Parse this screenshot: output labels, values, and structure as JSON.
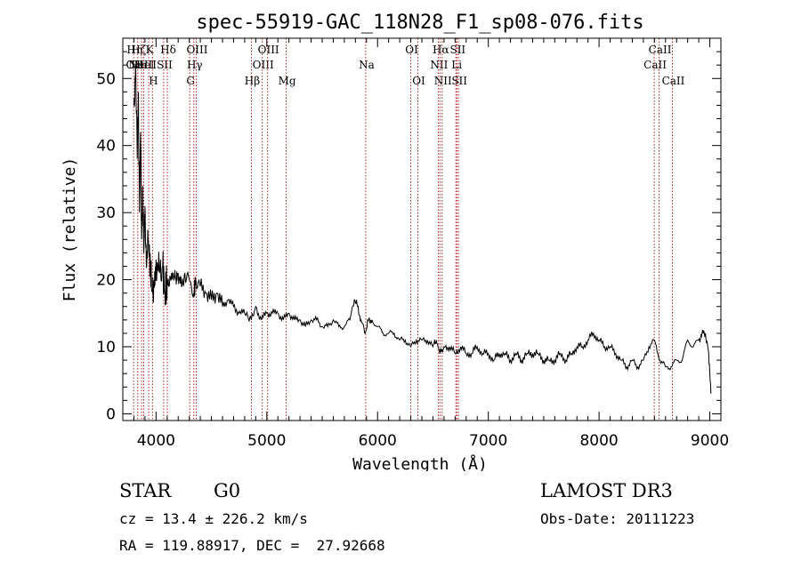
{
  "chart_data": {
    "type": "line",
    "title": "spec-55919-GAC_118N28_F1_sp08-076.fits",
    "xlabel": "Wavelength (Å)",
    "ylabel": "Flux (relative)",
    "xlim": [
      3700,
      9100
    ],
    "ylim": [
      -1,
      56
    ],
    "x_ticks": [
      4000,
      5000,
      6000,
      7000,
      8000,
      9000
    ],
    "y_ticks": [
      0,
      10,
      20,
      30,
      40,
      50
    ],
    "series": [
      {
        "name": "flux",
        "x": [
          3800,
          3815,
          3830,
          3840,
          3850,
          3860,
          3870,
          3880,
          3890,
          3900,
          3915,
          3930,
          3950,
          3968,
          3985,
          4000,
          4030,
          4060,
          4080,
          4101,
          4120,
          4150,
          4180,
          4200,
          4230,
          4260,
          4300,
          4340,
          4360,
          4400,
          4450,
          4500,
          4550,
          4600,
          4650,
          4700,
          4750,
          4800,
          4861,
          4900,
          4950,
          5000,
          5050,
          5100,
          5150,
          5200,
          5250,
          5300,
          5350,
          5400,
          5450,
          5500,
          5550,
          5600,
          5650,
          5700,
          5750,
          5790,
          5820,
          5850,
          5890,
          5920,
          5950,
          6000,
          6050,
          6100,
          6150,
          6200,
          6250,
          6300,
          6350,
          6400,
          6450,
          6500,
          6530,
          6563,
          6600,
          6650,
          6700,
          6750,
          6800,
          6850,
          6900,
          6950,
          7000,
          7050,
          7100,
          7150,
          7200,
          7250,
          7300,
          7350,
          7400,
          7450,
          7500,
          7550,
          7600,
          7650,
          7700,
          7750,
          7800,
          7850,
          7900,
          7950,
          8000,
          8050,
          8100,
          8150,
          8200,
          8250,
          8300,
          8350,
          8400,
          8450,
          8500,
          8550,
          8600,
          8650,
          8700,
          8750,
          8800,
          8850,
          8900,
          8930,
          8960,
          8990,
          9010
        ],
        "y": [
          46,
          52,
          38,
          48,
          30,
          42,
          26,
          34,
          24,
          31,
          22,
          26,
          21,
          18,
          19,
          23,
          21,
          22,
          18,
          20,
          19,
          21,
          20,
          21,
          19,
          21,
          20,
          18,
          20,
          19,
          18,
          17,
          18,
          16,
          17,
          16,
          15,
          15,
          14,
          16,
          14,
          15,
          15,
          15,
          14,
          15,
          14,
          14,
          13,
          14,
          14,
          13,
          13,
          14,
          13,
          13,
          14,
          17,
          16,
          14,
          12,
          14,
          14,
          13,
          12,
          12,
          12,
          11,
          11,
          10,
          11,
          11,
          11,
          10,
          11,
          9,
          10,
          10,
          9,
          10,
          9,
          9,
          10,
          9,
          9,
          8,
          9,
          9,
          8,
          9,
          8,
          9,
          9,
          9,
          8,
          8,
          8,
          9,
          8,
          9,
          10,
          10,
          11,
          12,
          11,
          10,
          10,
          9,
          8,
          7,
          8,
          7,
          8,
          10,
          11,
          8,
          7,
          7,
          8,
          8,
          11,
          10,
          11,
          12,
          12,
          9,
          3
        ]
      }
    ],
    "spectral_lines": [
      {
        "wavelength": 3798,
        "labels": [
          "Hη",
          "OII"
        ],
        "label_row": 0
      },
      {
        "wavelength": 3835,
        "labels": [
          "Hζ",
          "Hε"
        ],
        "label_row": 0
      },
      {
        "wavelength": 3869,
        "labels": [
          "NeIII"
        ],
        "label_row": 1
      },
      {
        "wavelength": 3889,
        "labels": [
          "HeI"
        ],
        "label_row": 1
      },
      {
        "wavelength": 3934,
        "labels": [
          "K"
        ],
        "label_row": 0
      },
      {
        "wavelength": 3968,
        "labels": [
          "H"
        ],
        "label_row": 2
      },
      {
        "wavelength": 4069,
        "labels": [
          "SII"
        ],
        "label_row": 1
      },
      {
        "wavelength": 4102,
        "labels": [
          "Hδ"
        ],
        "label_row": 0
      },
      {
        "wavelength": 4304,
        "labels": [
          "G"
        ],
        "label_row": 2
      },
      {
        "wavelength": 4341,
        "labels": [
          "Hγ"
        ],
        "label_row": 1
      },
      {
        "wavelength": 4363,
        "labels": [
          "OIII"
        ],
        "label_row": 0
      },
      {
        "wavelength": 4861,
        "labels": [
          "Hβ"
        ],
        "label_row": 2
      },
      {
        "wavelength": 4959,
        "labels": [
          "OIII"
        ],
        "label_row": 1
      },
      {
        "wavelength": 5007,
        "labels": [
          "OIII"
        ],
        "label_row": 0
      },
      {
        "wavelength": 5175,
        "labels": [
          "Mg"
        ],
        "label_row": 2
      },
      {
        "wavelength": 5893,
        "labels": [
          "Na"
        ],
        "label_row": 1
      },
      {
        "wavelength": 6300,
        "labels": [
          "OI"
        ],
        "label_row": 0
      },
      {
        "wavelength": 6364,
        "labels": [
          "OI"
        ],
        "label_row": 2
      },
      {
        "wavelength": 6548,
        "labels": [
          "NII"
        ],
        "label_row": 1
      },
      {
        "wavelength": 6563,
        "labels": [
          "Hα"
        ],
        "label_row": 0
      },
      {
        "wavelength": 6583,
        "labels": [
          "NII"
        ],
        "label_row": 2
      },
      {
        "wavelength": 6707,
        "labels": [
          "Li"
        ],
        "label_row": 1
      },
      {
        "wavelength": 6716,
        "labels": [
          "SII"
        ],
        "label_row": 0
      },
      {
        "wavelength": 6731,
        "labels": [
          "SII"
        ],
        "label_row": 2
      },
      {
        "wavelength": 8498,
        "labels": [
          "CaII"
        ],
        "label_row": 1
      },
      {
        "wavelength": 8542,
        "labels": [
          "CaII"
        ],
        "label_row": 0
      },
      {
        "wavelength": 8662,
        "labels": [
          "CaII"
        ],
        "label_row": 2
      }
    ],
    "line_color": "#b22222",
    "flux_color": "#000000"
  },
  "info": {
    "object_class": "STAR",
    "subclass": "G0",
    "survey": "LAMOST DR3",
    "redshift": "cz = 13.4 ± 226.2 km/s",
    "obs_date": "Obs-Date: 20111223",
    "coordinates": "RA = 119.88917, DEC =  27.92668"
  }
}
